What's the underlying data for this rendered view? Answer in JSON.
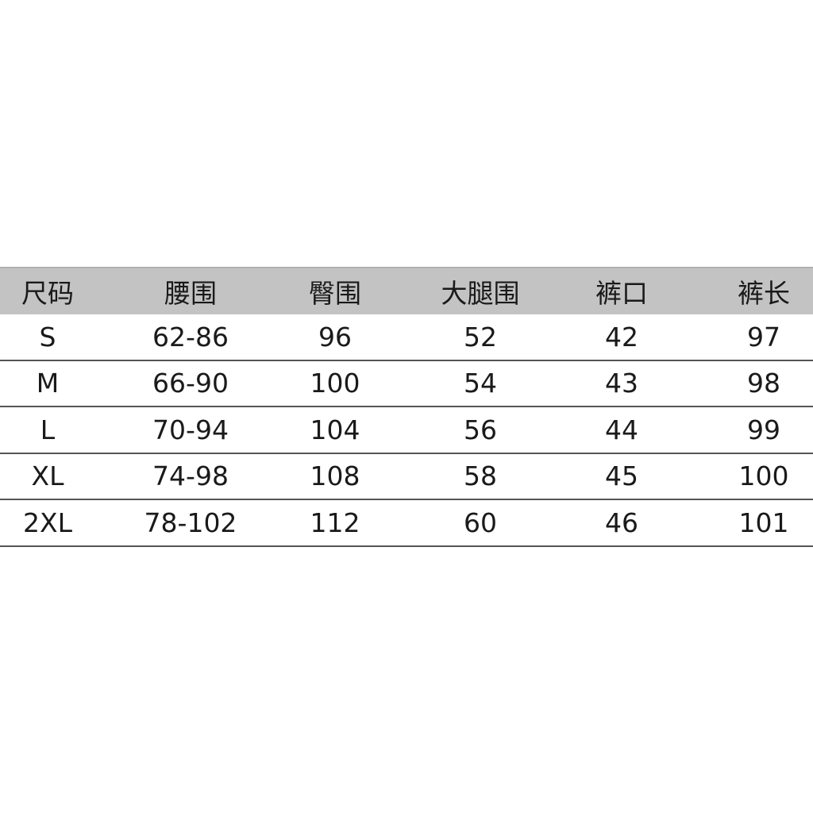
{
  "table": {
    "headers": [
      "尺码",
      "腰围",
      "臀围",
      "大腿围",
      "裤口",
      "裤长"
    ],
    "rows": [
      [
        "S",
        "62-86",
        "96",
        "52",
        "42",
        "97"
      ],
      [
        "M",
        "66-90",
        "100",
        "54",
        "43",
        "98"
      ],
      [
        "L",
        "70-94",
        "104",
        "56",
        "44",
        "99"
      ],
      [
        "XL",
        "74-98",
        "108",
        "58",
        "45",
        "100"
      ],
      [
        "2XL",
        "78-102",
        "112",
        "60",
        "46",
        "101"
      ]
    ]
  },
  "colors": {
    "header_bg": "#c3c3c3",
    "divider": "#555555",
    "text": "#1a1a1a"
  }
}
